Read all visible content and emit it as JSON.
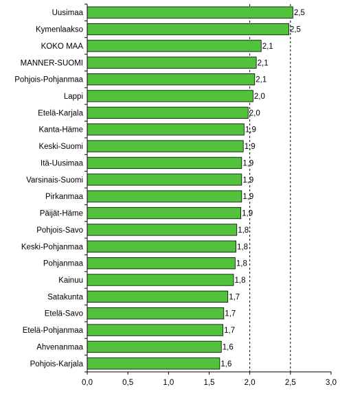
{
  "colors": {
    "bar_fill": "#52c13c",
    "bar_stroke": "#000000",
    "axis": "#000000",
    "reference_line": "#000000",
    "background": "#ffffff"
  },
  "chart_data": {
    "type": "bar",
    "orientation": "horizontal",
    "title": "",
    "xlabel": "",
    "ylabel": "",
    "xlim": [
      0,
      3.0
    ],
    "x_ticks": [
      "0,0",
      "0,5",
      "1,0",
      "1,5",
      "2,0",
      "2,5",
      "3,0"
    ],
    "x_tick_values": [
      0,
      0.5,
      1.0,
      1.5,
      2.0,
      2.5,
      3.0
    ],
    "reference_lines": [
      2.0,
      2.5
    ],
    "reference_line_style": "dashed",
    "grid": false,
    "legend": "none",
    "categories": [
      "Uusimaa",
      "Kymenlaakso",
      "KOKO MAA",
      "MANNER-SUOMI",
      "Pohjois-Pohjanmaa",
      "Lappi",
      "Etelä-Karjala",
      "Kanta-Häme",
      "Keski-Suomi",
      "Itä-Uusimaa",
      "Varsinais-Suomi",
      "Pirkanmaa",
      "Päijät-Häme",
      "Pohjois-Savo",
      "Keski-Pohjanmaa",
      "Pohjanmaa",
      "Kainuu",
      "Satakunta",
      "Etelä-Savo",
      "Etelä-Pohjanmaa",
      "Ahvenanmaa",
      "Pohjois-Karjala"
    ],
    "values": [
      2.53,
      2.48,
      2.14,
      2.08,
      2.06,
      2.04,
      1.98,
      1.93,
      1.92,
      1.9,
      1.9,
      1.9,
      1.89,
      1.84,
      1.83,
      1.82,
      1.8,
      1.73,
      1.68,
      1.67,
      1.65,
      1.63
    ],
    "value_labels": [
      "2,5",
      "2,5",
      "2,1",
      "2,1",
      "2,1",
      "2,0",
      "2,0",
      "1,9",
      "1,9",
      "1,9",
      "1,9",
      "1,9",
      "1,9",
      "1,8",
      "1,8",
      "1,8",
      "1,8",
      "1,7",
      "1,7",
      "1,7",
      "1,6",
      "1,6"
    ]
  }
}
